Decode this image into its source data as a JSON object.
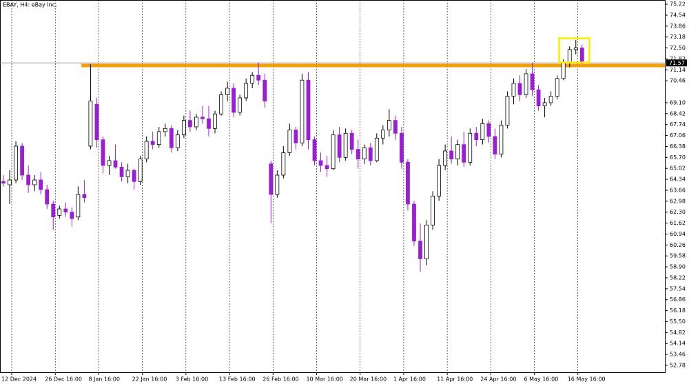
{
  "chart_data": {
    "type": "candlestick",
    "title": "EBAY, H4:  eBay Inc.",
    "categories": [
      "12 Dec 2024",
      null,
      null,
      null,
      null,
      null,
      null,
      "26 Dec 16:00",
      null,
      null,
      null,
      null,
      null,
      null,
      "8 Jan 16:00",
      null,
      null,
      null,
      null,
      null,
      null,
      "22 Jan 16:00",
      null,
      null,
      null,
      null,
      null,
      null,
      "3 Feb 16:00",
      null,
      null,
      null,
      null,
      null,
      null,
      "13 Feb 16:00",
      null,
      null,
      null,
      null,
      null,
      null,
      "26 Feb 16:00",
      null,
      null,
      null,
      null,
      null,
      null,
      "10 Mar 16:00",
      null,
      null,
      null,
      null,
      null,
      null,
      "20 Mar 16:00",
      null,
      null,
      null,
      null,
      null,
      null,
      "1 Apr 16:00",
      null,
      null,
      null,
      null,
      null,
      null,
      "11 Apr 16:00",
      null,
      null,
      null,
      null,
      null,
      null,
      "24 Apr 16:00",
      null,
      null,
      null,
      null,
      null,
      null,
      "6 May 16:00",
      null,
      null,
      null,
      null,
      null,
      null,
      "16 May 16:00",
      null,
      null
    ],
    "ohlc": [
      [
        64.2,
        64.6,
        63.9,
        64.1
      ],
      [
        64.0,
        64.9,
        62.8,
        64.3
      ],
      [
        64.3,
        66.7,
        64.1,
        66.4
      ],
      [
        66.4,
        66.6,
        64.3,
        64.6
      ],
      [
        64.6,
        65.2,
        63.5,
        64.0
      ],
      [
        64.0,
        64.6,
        63.6,
        64.3
      ],
      [
        64.3,
        64.8,
        63.4,
        63.7
      ],
      [
        63.7,
        64.0,
        62.5,
        62.8
      ],
      [
        62.8,
        63.0,
        61.2,
        62.0
      ],
      [
        62.1,
        62.7,
        61.9,
        62.5
      ],
      [
        62.5,
        62.9,
        62.0,
        62.3
      ],
      [
        62.3,
        62.6,
        61.4,
        61.9
      ],
      [
        62.0,
        63.9,
        61.8,
        63.4
      ],
      [
        63.4,
        64.3,
        62.9,
        63.2
      ],
      [
        66.4,
        71.5,
        66.2,
        69.2
      ],
      [
        69.0,
        69.4,
        66.3,
        66.8
      ],
      [
        66.8,
        67.0,
        64.7,
        65.2
      ],
      [
        65.2,
        65.8,
        64.6,
        65.5
      ],
      [
        65.5,
        66.5,
        65.0,
        65.1
      ],
      [
        65.1,
        65.4,
        64.2,
        64.5
      ],
      [
        64.5,
        65.3,
        64.1,
        64.9
      ],
      [
        64.9,
        65.0,
        63.7,
        64.2
      ],
      [
        64.2,
        65.8,
        64.0,
        65.6
      ],
      [
        65.6,
        67.0,
        65.4,
        66.7
      ],
      [
        66.7,
        67.3,
        66.2,
        66.5
      ],
      [
        66.5,
        67.6,
        66.3,
        67.3
      ],
      [
        67.3,
        67.8,
        67.0,
        67.5
      ],
      [
        67.5,
        67.7,
        66.0,
        66.3
      ],
      [
        66.3,
        67.4,
        66.1,
        67.1
      ],
      [
        67.1,
        68.3,
        66.9,
        68.0
      ],
      [
        68.0,
        68.6,
        67.3,
        67.6
      ],
      [
        67.6,
        68.4,
        67.4,
        68.2
      ],
      [
        68.2,
        68.9,
        67.8,
        68.1
      ],
      [
        68.1,
        68.9,
        67.0,
        67.5
      ],
      [
        67.5,
        68.6,
        67.2,
        68.4
      ],
      [
        68.4,
        69.8,
        68.3,
        69.6
      ],
      [
        69.6,
        70.4,
        69.2,
        70.0
      ],
      [
        70.0,
        70.3,
        68.2,
        68.5
      ],
      [
        68.5,
        69.6,
        68.3,
        69.4
      ],
      [
        69.4,
        70.6,
        69.2,
        70.3
      ],
      [
        70.3,
        71.0,
        70.0,
        70.8
      ],
      [
        70.8,
        71.6,
        70.2,
        70.5
      ],
      [
        70.5,
        70.9,
        68.8,
        69.2
      ],
      [
        65.3,
        65.5,
        61.6,
        63.4
      ],
      [
        63.4,
        64.9,
        63.2,
        64.6
      ],
      [
        64.6,
        66.4,
        64.4,
        66.0
      ],
      [
        66.0,
        67.8,
        65.8,
        67.4
      ],
      [
        67.4,
        67.6,
        66.2,
        66.6
      ],
      [
        66.6,
        70.9,
        66.4,
        70.5
      ],
      [
        70.5,
        71.0,
        66.2,
        66.8
      ],
      [
        66.8,
        67.0,
        65.2,
        65.5
      ],
      [
        65.5,
        66.0,
        64.8,
        65.2
      ],
      [
        65.2,
        65.8,
        64.5,
        65.0
      ],
      [
        65.0,
        67.4,
        64.9,
        67.1
      ],
      [
        67.1,
        67.6,
        65.4,
        65.7
      ],
      [
        65.7,
        67.5,
        65.5,
        67.2
      ],
      [
        67.2,
        67.4,
        65.9,
        66.2
      ],
      [
        66.2,
        66.8,
        65.0,
        65.6
      ],
      [
        65.6,
        66.5,
        65.3,
        66.3
      ],
      [
        66.3,
        66.6,
        65.2,
        65.5
      ],
      [
        65.5,
        67.2,
        65.4,
        66.9
      ],
      [
        66.9,
        67.7,
        66.5,
        67.4
      ],
      [
        67.4,
        68.7,
        67.0,
        68.0
      ],
      [
        68.0,
        68.3,
        66.8,
        67.2
      ],
      [
        67.2,
        67.6,
        65.0,
        65.4
      ],
      [
        65.4,
        65.6,
        62.4,
        62.8
      ],
      [
        62.8,
        63.0,
        60.2,
        60.5
      ],
      [
        60.5,
        61.6,
        58.6,
        59.4
      ],
      [
        59.4,
        61.8,
        59.0,
        61.5
      ],
      [
        61.5,
        63.6,
        61.2,
        63.3
      ],
      [
        63.3,
        65.6,
        63.0,
        65.2
      ],
      [
        65.2,
        66.5,
        64.9,
        66.1
      ],
      [
        66.1,
        67.0,
        65.3,
        65.6
      ],
      [
        65.6,
        66.8,
        65.2,
        66.5
      ],
      [
        66.5,
        67.3,
        65.1,
        65.4
      ],
      [
        65.4,
        67.5,
        65.2,
        67.2
      ],
      [
        67.2,
        67.6,
        66.4,
        66.8
      ],
      [
        66.8,
        68.1,
        66.5,
        67.8
      ],
      [
        67.8,
        68.0,
        66.6,
        67.0
      ],
      [
        67.0,
        67.5,
        65.6,
        65.9
      ],
      [
        65.9,
        68.0,
        65.7,
        67.7
      ],
      [
        67.7,
        69.8,
        67.5,
        69.5
      ],
      [
        69.5,
        70.6,
        69.0,
        70.3
      ],
      [
        70.3,
        70.8,
        69.2,
        69.6
      ],
      [
        69.6,
        71.2,
        69.4,
        70.9
      ],
      [
        70.9,
        71.6,
        69.5,
        69.9
      ],
      [
        69.9,
        70.2,
        68.6,
        68.9
      ],
      [
        68.9,
        69.4,
        68.2,
        69.1
      ],
      [
        69.1,
        69.8,
        68.9,
        69.5
      ],
      [
        69.5,
        70.8,
        69.3,
        70.6
      ],
      [
        70.6,
        71.8,
        70.5,
        71.6
      ],
      [
        71.6,
        72.6,
        71.3,
        72.4
      ],
      [
        72.4,
        73.0,
        72.1,
        72.5
      ],
      [
        72.5,
        72.7,
        71.5,
        71.57
      ]
    ],
    "up_color": "#ffffff",
    "down_color": "#9a1fd3",
    "current_price": 71.57,
    "ylim": [
      52.35,
      75.48
    ],
    "yticks": [
      75.22,
      74.54,
      73.86,
      73.18,
      {
        "value": 72.5,
        "label": "72.50"
      },
      71.82,
      71.14,
      70.46,
      {
        "value": 69.1,
        "label": "69.10"
      },
      68.42,
      67.74,
      67.06,
      66.38,
      {
        "value": 65.7,
        "label": "65.70"
      },
      65.02,
      64.34,
      63.66,
      62.98,
      {
        "value": 62.3,
        "label": "62.30"
      },
      61.62,
      60.94,
      60.26,
      59.58,
      {
        "value": 58.9,
        "label": "58.90"
      },
      58.22,
      57.54,
      56.86,
      56.18,
      {
        "value": 55.5,
        "label": "55.50"
      },
      54.82,
      54.14,
      53.46,
      52.78
    ]
  }
}
